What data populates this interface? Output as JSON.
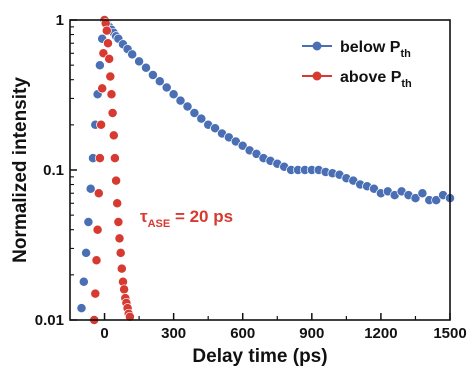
{
  "chart_data": {
    "type": "scatter",
    "xlabel": "Delay time (ps)",
    "ylabel": "Normalized intensity",
    "xlim": [
      -150,
      1500
    ],
    "ylim": [
      0.01,
      1
    ],
    "yscale": "log",
    "xticks": [
      0,
      300,
      600,
      900,
      1200,
      1500
    ],
    "xtick_labels": [
      "0",
      "300",
      "600",
      "900",
      "1200",
      "1500"
    ],
    "yticks": [
      0.01,
      0.1,
      1
    ],
    "ytick_labels": [
      "0.01",
      "0.1",
      "1"
    ],
    "grid": false,
    "legend_position": "top-right",
    "series": [
      {
        "name_main": "below P",
        "name_sub": "th",
        "color": "#4a6fb5",
        "x": [
          -100,
          -90,
          -80,
          -70,
          -60,
          -50,
          -40,
          -30,
          -20,
          -10,
          0,
          10,
          20,
          30,
          40,
          50,
          60,
          80,
          100,
          120,
          150,
          180,
          210,
          240,
          270,
          300,
          330,
          360,
          390,
          420,
          450,
          480,
          510,
          540,
          570,
          600,
          630,
          660,
          690,
          720,
          750,
          780,
          810,
          840,
          870,
          900,
          930,
          960,
          990,
          1020,
          1050,
          1080,
          1110,
          1140,
          1170,
          1200,
          1230,
          1260,
          1290,
          1320,
          1350,
          1380,
          1410,
          1440,
          1470,
          1500
        ],
        "y": [
          0.012,
          0.018,
          0.028,
          0.045,
          0.075,
          0.12,
          0.2,
          0.32,
          0.5,
          0.75,
          1.0,
          0.95,
          0.9,
          0.86,
          0.82,
          0.78,
          0.75,
          0.69,
          0.64,
          0.59,
          0.53,
          0.48,
          0.43,
          0.39,
          0.355,
          0.32,
          0.29,
          0.265,
          0.24,
          0.22,
          0.2,
          0.19,
          0.175,
          0.165,
          0.155,
          0.145,
          0.135,
          0.128,
          0.12,
          0.115,
          0.11,
          0.105,
          0.1,
          0.1,
          0.1,
          0.1,
          0.1,
          0.097,
          0.095,
          0.093,
          0.088,
          0.085,
          0.08,
          0.078,
          0.075,
          0.07,
          0.072,
          0.068,
          0.072,
          0.068,
          0.065,
          0.07,
          0.063,
          0.063,
          0.068,
          0.065
        ]
      },
      {
        "name_main": "above P",
        "name_sub": "th",
        "color": "#d63a30",
        "x": [
          -45,
          -40,
          -35,
          -30,
          -25,
          -20,
          -15,
          -10,
          -5,
          0,
          5,
          10,
          15,
          20,
          25,
          30,
          35,
          40,
          45,
          50,
          55,
          60,
          65,
          70,
          75,
          80,
          85,
          90,
          95,
          100,
          105,
          110
        ],
        "y": [
          0.01,
          0.015,
          0.025,
          0.04,
          0.07,
          0.12,
          0.2,
          0.35,
          0.6,
          1.0,
          0.95,
          0.85,
          0.7,
          0.55,
          0.42,
          0.32,
          0.24,
          0.17,
          0.12,
          0.085,
          0.06,
          0.045,
          0.035,
          0.028,
          0.022,
          0.018,
          0.016,
          0.014,
          0.013,
          0.012,
          0.011,
          0.0105
        ]
      }
    ],
    "annotation": {
      "symbol": "τ",
      "sub": "ASE",
      "rest": " = 20 ps",
      "color": "#d63a30"
    }
  }
}
